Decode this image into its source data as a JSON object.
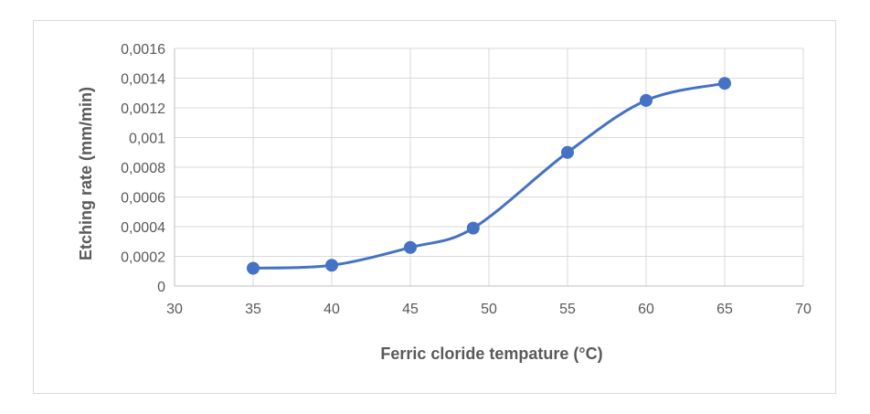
{
  "chart_data": {
    "type": "line",
    "smooth": true,
    "title": "",
    "xlabel": "Ferric cloride tempature (°C)",
    "ylabel": "Etching rate (mm/min)",
    "xlim": [
      30,
      70
    ],
    "ylim": [
      0,
      0.0016
    ],
    "x_ticks": [
      "30",
      "35",
      "40",
      "45",
      "50",
      "55",
      "60",
      "65",
      "70"
    ],
    "x_tick_values": [
      30,
      35,
      40,
      45,
      50,
      55,
      60,
      65,
      70
    ],
    "y_ticks": [
      "0",
      "0,0002",
      "0,0004",
      "0,0006",
      "0,0008",
      "0,001",
      "0,0012",
      "0,0014",
      "0,0016"
    ],
    "y_tick_values": [
      0,
      0.0002,
      0.0004,
      0.0006,
      0.0008,
      0.001,
      0.0012,
      0.0014,
      0.0016
    ],
    "grid": true,
    "legend": "none",
    "series": [
      {
        "x": [
          35,
          40,
          45,
          49,
          55,
          60,
          65
        ],
        "y": [
          0.00012,
          0.00014,
          0.00026,
          0.00039,
          0.0009,
          0.00125,
          0.001365
        ]
      }
    ],
    "colors": {
      "line": "#4472c4",
      "marker": "#4472c4",
      "grid": "#d9d9d9",
      "axis": "#bfbfbf"
    }
  }
}
